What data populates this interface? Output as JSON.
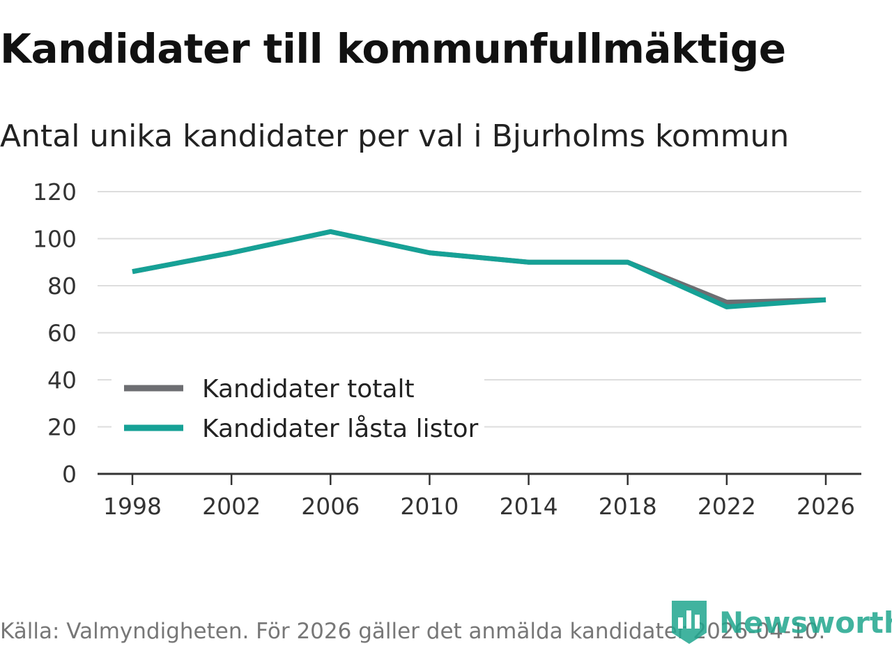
{
  "chart_data": {
    "type": "line",
    "title": "Kandidater till kommunfullmäktige",
    "subtitle": "Antal unika kandidater per val i Bjurholms kommun",
    "x": [
      "1998",
      "2002",
      "2006",
      "2010",
      "2014",
      "2018",
      "2022",
      "2026"
    ],
    "series": [
      {
        "name": "Kandidater totalt",
        "color": "#6d6e72",
        "values": [
          86,
          94,
          103,
          94,
          90,
          90,
          73,
          74
        ]
      },
      {
        "name": "Kandidater låsta listor",
        "color": "#16a196",
        "values": [
          86,
          94,
          103,
          94,
          90,
          90,
          71,
          74
        ]
      }
    ],
    "yticks": [
      "0",
      "20",
      "40",
      "60",
      "80",
      "100",
      "120"
    ],
    "ylim": [
      0,
      120
    ],
    "xlabel": "",
    "ylabel": "",
    "grid": true,
    "legend_position": "bottom-left"
  },
  "footer": {
    "source": "Källa: Valmyndigheten. För 2026 gäller det anmälda kandidater 2026-04-10.",
    "brand": "Newsworthy",
    "brand_color": "#20a68e",
    "brand_icon": "bar-chart-bookmark-icon"
  }
}
